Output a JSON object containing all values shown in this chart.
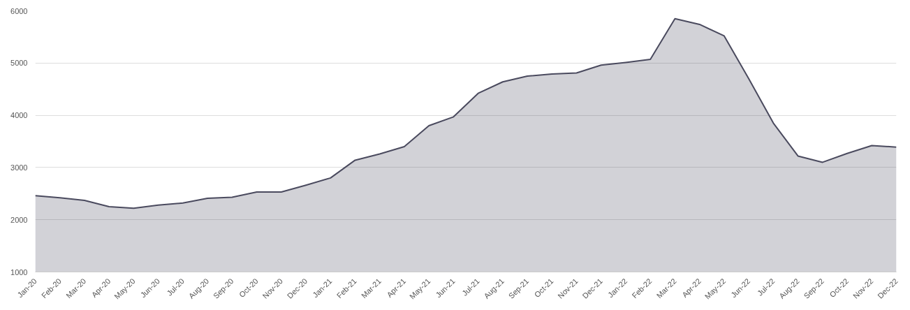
{
  "chart_data": {
    "type": "area",
    "categories": [
      "Jan-20",
      "Feb-20",
      "Mar-20",
      "Apr-20",
      "May-20",
      "Jun-20",
      "Jul-20",
      "Aug-20",
      "Sep-20",
      "Oct-20",
      "Nov-20",
      "Dec-20",
      "Jan-21",
      "Feb-21",
      "Mar-21",
      "Apr-21",
      "May-21",
      "Jun-21",
      "Jul-21",
      "Aug-21",
      "Sep-21",
      "Oct-21",
      "Nov-21",
      "Dec-21",
      "Jan-22",
      "Feb-22",
      "Mar-22",
      "Apr-22",
      "May-22",
      "Jun-22",
      "Jul-22",
      "Aug-22",
      "Sep-22",
      "Oct-22",
      "Nov-22",
      "Dec-22"
    ],
    "series": [
      {
        "color": "#4a4a5e",
        "values": [
          2460,
          2420,
          2370,
          2250,
          2220,
          2280,
          2320,
          2410,
          2430,
          2530,
          2530,
          2660,
          2800,
          3140,
          3260,
          3400,
          3800,
          3970,
          4420,
          4640,
          4750,
          4790,
          4810,
          4960,
          5010,
          5070,
          5850,
          5740,
          5520,
          4700,
          3850,
          3220,
          3100,
          3270,
          3420,
          3390
        ]
      }
    ],
    "ylim": [
      1000,
      6000
    ],
    "yticks": [
      1000,
      2000,
      3000,
      4000,
      5000,
      6000
    ],
    "grid": "y"
  }
}
